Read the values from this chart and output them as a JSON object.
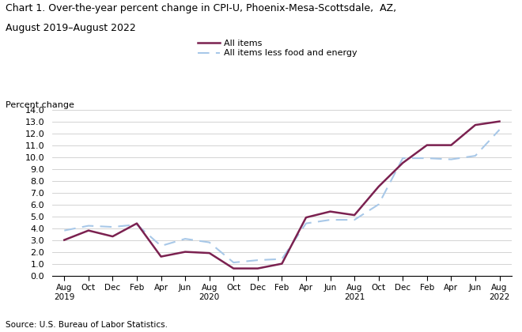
{
  "title_line1": "Chart 1. Over-the-year percent change in CPI-U, Phoenix-Mesa-Scottsdale,  AZ,",
  "title_line2": "August 2019–August 2022",
  "ylabel": "Percent change",
  "source": "Source: U.S. Bureau of Labor Statistics.",
  "legend_all_items": "All items",
  "legend_core": "All items less food and energy",
  "all_items_color": "#7B2150",
  "core_color": "#A8C8E8",
  "ylim": [
    0.0,
    14.0
  ],
  "yticks": [
    0.0,
    1.0,
    2.0,
    3.0,
    4.0,
    5.0,
    6.0,
    7.0,
    8.0,
    9.0,
    10.0,
    11.0,
    12.0,
    13.0,
    14.0
  ],
  "x_labels": [
    "Aug\n2019",
    "Oct",
    "Dec",
    "Feb",
    "Apr",
    "Jun",
    "Aug\n2020",
    "Oct",
    "Dec",
    "Feb",
    "Apr",
    "Jun",
    "Aug\n2021",
    "Oct",
    "Dec",
    "Feb",
    "Apr",
    "Jun",
    "Aug\n2022"
  ],
  "all_items": [
    3.0,
    3.8,
    3.3,
    4.4,
    1.6,
    2.0,
    1.9,
    0.6,
    0.6,
    1.0,
    4.9,
    5.4,
    5.1,
    7.5,
    9.5,
    11.0,
    11.0,
    12.7,
    13.0
  ],
  "core_items": [
    3.8,
    4.2,
    4.1,
    4.3,
    2.5,
    3.1,
    2.8,
    1.1,
    1.3,
    1.4,
    4.4,
    4.7,
    4.7,
    6.0,
    9.9,
    9.9,
    9.8,
    10.1,
    12.3
  ],
  "background_color": "#ffffff",
  "grid_color": "#cccccc"
}
